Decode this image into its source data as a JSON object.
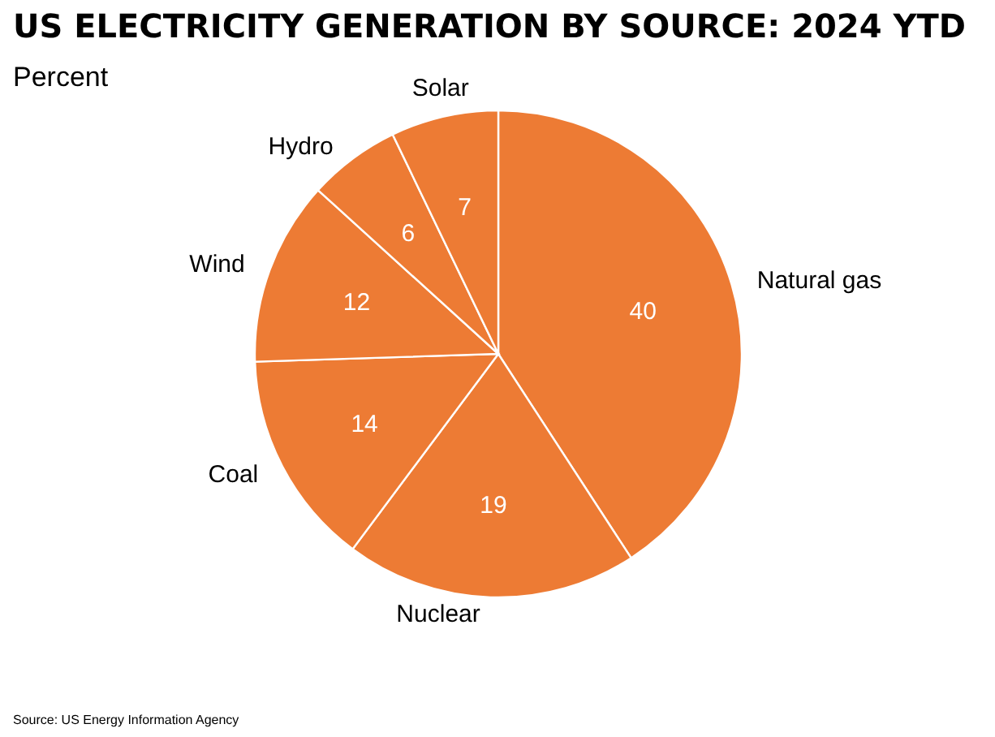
{
  "chart_data": {
    "type": "pie",
    "title": "US ELECTRICITY GENERATION BY SOURCE: 2024 YTD",
    "subtitle": "Percent",
    "categories": [
      "Natural gas",
      "Nuclear",
      "Coal",
      "Wind",
      "Hydro",
      "Solar"
    ],
    "values": [
      40,
      19,
      14,
      12,
      6,
      7
    ],
    "colors": [
      "#ed7b34",
      "#ed7b34",
      "#ed7b34",
      "#ed7b34",
      "#ed7b34",
      "#ed7b34"
    ],
    "data_labels": true,
    "annotations": [
      "Source:  US Energy Information Agency"
    ]
  }
}
